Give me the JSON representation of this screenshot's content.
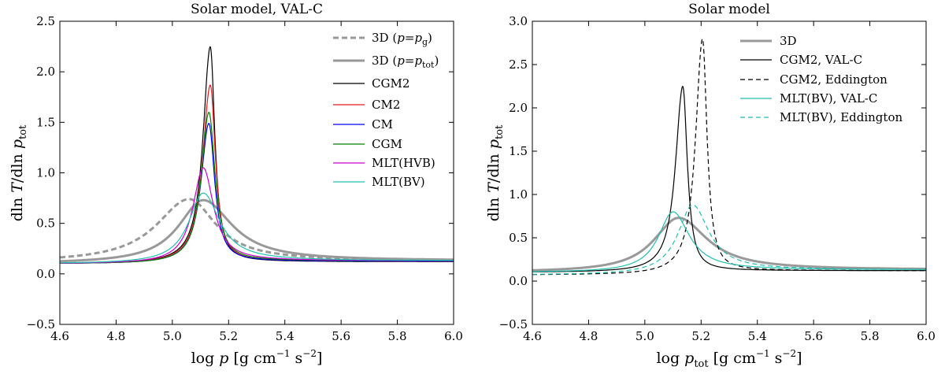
{
  "chart_data": [
    {
      "type": "line",
      "title": "Solar model, VAL-C",
      "xlabel": "log p [g cm⁻¹ s⁻²]",
      "ylabel": "dln T/dln p_tot",
      "xlim": [
        4.6,
        6.0
      ],
      "ylim": [
        -0.5,
        2.5
      ],
      "xticks": [
        "4.6",
        "4.8",
        "5.0",
        "5.2",
        "5.4",
        "5.6",
        "5.8",
        "6.0"
      ],
      "yticks": [
        "−0.5",
        "0.0",
        "0.5",
        "1.0",
        "1.5",
        "2.0",
        "2.5"
      ],
      "legend_position": "top-right",
      "series": [
        {
          "name": "3D (p=p_g)",
          "color": "#999999",
          "style": "dashed-thick",
          "peak_x": 5.06,
          "peak_y": 0.74,
          "base_left": 0.11,
          "base_right": 0.13,
          "width_left": 0.16,
          "width_right": 0.13,
          "tail": 0.004
        },
        {
          "name": "3D (p=p_tot)",
          "color": "#999999",
          "style": "solid-thick",
          "peak_x": 5.11,
          "peak_y": 0.73,
          "base_left": 0.1,
          "base_right": 0.13,
          "width_left": 0.12,
          "width_right": 0.14,
          "tail": 0.008
        },
        {
          "name": "CGM2",
          "color": "#000000",
          "style": "solid",
          "peak_x": 5.135,
          "peak_y": 2.25,
          "base_left": 0.1,
          "base_right": 0.12,
          "width_left": 0.035,
          "width_right": 0.022,
          "tail": 0.0005
        },
        {
          "name": "CM2",
          "color": "#e41a1c",
          "style": "solid",
          "peak_x": 5.135,
          "peak_y": 1.87,
          "base_left": 0.1,
          "base_right": 0.125,
          "width_left": 0.037,
          "width_right": 0.025,
          "tail": 0.0006
        },
        {
          "name": "CM",
          "color": "#0000ee",
          "style": "solid",
          "peak_x": 5.13,
          "peak_y": 1.49,
          "base_left": 0.1,
          "base_right": 0.125,
          "width_left": 0.038,
          "width_right": 0.028,
          "tail": 0.0008
        },
        {
          "name": "CGM",
          "color": "#008000",
          "style": "solid",
          "peak_x": 5.13,
          "peak_y": 1.6,
          "base_left": 0.1,
          "base_right": 0.13,
          "width_left": 0.036,
          "width_right": 0.03,
          "tail": 0.0009
        },
        {
          "name": "MLT(HVB)",
          "color": "#cc00cc",
          "style": "solid",
          "peak_x": 5.11,
          "peak_y": 1.05,
          "base_left": 0.1,
          "base_right": 0.13,
          "width_left": 0.05,
          "width_right": 0.05,
          "tail": 0.0015
        },
        {
          "name": "MLT(BV)",
          "color": "#20c0b0",
          "style": "solid",
          "peak_x": 5.11,
          "peak_y": 0.8,
          "base_left": 0.1,
          "base_right": 0.13,
          "width_left": 0.07,
          "width_right": 0.08,
          "tail": 0.003
        }
      ]
    },
    {
      "type": "line",
      "title": "Solar model",
      "xlabel": "log p_tot [g cm⁻¹ s⁻²]",
      "ylabel": "dln T/dln p_tot",
      "xlim": [
        4.6,
        6.0
      ],
      "ylim": [
        -0.5,
        3.0
      ],
      "xticks": [
        "4.6",
        "4.8",
        "5.0",
        "5.2",
        "5.4",
        "5.6",
        "5.8",
        "6.0"
      ],
      "yticks": [
        "−0.5",
        "0.0",
        "0.5",
        "1.0",
        "1.5",
        "2.0",
        "2.5",
        "3.0"
      ],
      "legend_position": "top-right",
      "series": [
        {
          "name": "3D",
          "color": "#999999",
          "style": "solid-thick",
          "peak_x": 5.12,
          "peak_y": 0.73,
          "base_left": 0.1,
          "base_right": 0.13,
          "width_left": 0.12,
          "width_right": 0.14,
          "tail": 0.008
        },
        {
          "name": "CGM2, VAL-C",
          "color": "#000000",
          "style": "solid",
          "peak_x": 5.135,
          "peak_y": 2.25,
          "base_left": 0.1,
          "base_right": 0.12,
          "width_left": 0.035,
          "width_right": 0.022,
          "tail": 0.0005
        },
        {
          "name": "CGM2, Eddington",
          "color": "#000000",
          "style": "dashed",
          "peak_x": 5.205,
          "peak_y": 2.8,
          "base_left": 0.07,
          "base_right": 0.12,
          "width_left": 0.033,
          "width_right": 0.022,
          "tail": 0.0005
        },
        {
          "name": "MLT(BV), VAL-C",
          "color": "#20c0b0",
          "style": "solid",
          "peak_x": 5.1,
          "peak_y": 0.8,
          "base_left": 0.1,
          "base_right": 0.13,
          "width_left": 0.07,
          "width_right": 0.08,
          "tail": 0.003
        },
        {
          "name": "MLT(BV), Eddington",
          "color": "#20c0b0",
          "style": "dashed",
          "peak_x": 5.17,
          "peak_y": 0.88,
          "base_left": 0.07,
          "base_right": 0.13,
          "width_left": 0.07,
          "width_right": 0.08,
          "tail": 0.003
        }
      ]
    }
  ]
}
